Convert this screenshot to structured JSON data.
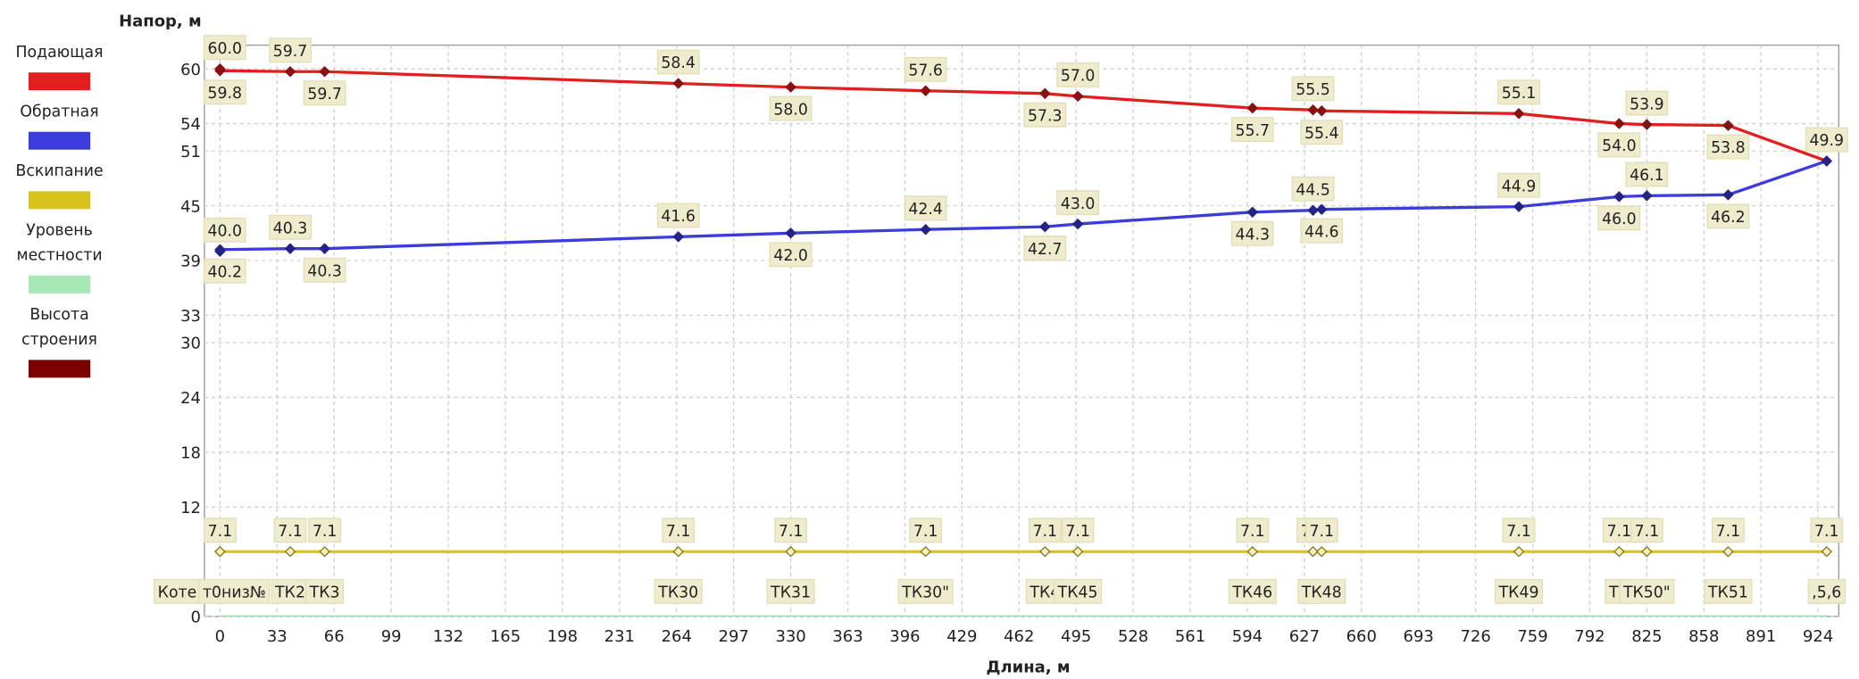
{
  "chart_data": {
    "type": "line",
    "y_label": "Напор, м",
    "x_label": "Длина, м",
    "x": [
      0,
      0,
      40.6,
      60.5,
      265,
      330,
      408,
      477,
      496,
      597,
      632,
      637,
      751,
      809,
      825,
      872,
      929
    ],
    "node_labels": [
      "Коте",
      "т0низ№",
      "ТК2",
      "ТК3",
      "ТК30",
      "ТК31",
      "ТК30\"",
      "ТК4",
      "ТК45",
      "ТК46",
      "1",
      "ТК48",
      "ТК49",
      "ТК",
      "ТК50\"",
      "ТК51",
      ",5,6"
    ],
    "xlim": [
      -9,
      936
    ],
    "ylim": [
      0,
      62.6
    ],
    "xticks": [
      0,
      33,
      66,
      99,
      132,
      165,
      198,
      231,
      264,
      297,
      330,
      363,
      396,
      429,
      462,
      495,
      528,
      561,
      594,
      627,
      660,
      693,
      726,
      759,
      792,
      825,
      858,
      891,
      924
    ],
    "yticks": [
      0,
      12,
      18,
      24,
      30,
      33,
      39,
      45,
      51,
      54,
      60
    ],
    "grid": true,
    "series": [
      {
        "name": "Подающая",
        "color": "#e31e1e",
        "values": [
          60.0,
          59.8,
          59.7,
          59.7,
          58.4,
          58.0,
          57.6,
          57.3,
          57.0,
          55.7,
          55.5,
          55.4,
          55.1,
          54.0,
          53.9,
          53.8,
          49.9
        ],
        "value_labels": [
          "60.0",
          "59.8",
          "59.7",
          "59.7",
          "58.4",
          "58.0",
          "57.6",
          "57.3",
          "57.0",
          "55.7",
          "55.5",
          "55.4",
          "55.1",
          "54.0",
          "53.9",
          "53.8",
          "49.9"
        ]
      },
      {
        "name": "Обратная",
        "color": "#3c3cdc",
        "values": [
          40.0,
          40.2,
          40.3,
          40.3,
          41.6,
          42.0,
          42.4,
          42.7,
          43.0,
          44.3,
          44.5,
          44.6,
          44.9,
          46.0,
          46.1,
          46.2,
          49.9
        ],
        "value_labels": [
          "40.0",
          "40.2",
          "40.3",
          "40.3",
          "41.6",
          "42.0",
          "42.4",
          "42.7",
          "43.0",
          "44.3",
          "44.5",
          "44.6",
          "44.9",
          "46.0",
          "46.1",
          "46.2",
          "49.9"
        ]
      },
      {
        "name": "Вскипание",
        "color": "#d9c41e",
        "values": [
          7.1,
          7.1,
          7.1,
          7.1,
          7.1,
          7.1,
          7.1,
          7.1,
          7.1,
          7.1,
          7.1,
          7.1,
          7.1,
          7.1,
          7.1,
          7.1,
          7.1
        ]
      },
      {
        "name": "Уровень местности",
        "color": "#a6e8b6",
        "values": [
          0,
          0,
          0,
          0,
          0,
          0,
          0,
          0,
          0,
          0,
          0,
          0,
          0,
          0,
          0,
          0,
          0
        ]
      },
      {
        "name": "Высота строения",
        "color": "#7d0000",
        "values": [
          null,
          null,
          null,
          null,
          null,
          null,
          null,
          null,
          null,
          null,
          null,
          null,
          null,
          null,
          null,
          null,
          null
        ]
      }
    ]
  }
}
